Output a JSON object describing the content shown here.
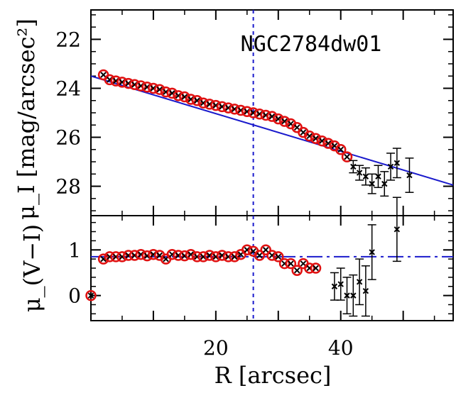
{
  "chart_data": [
    {
      "type": "scatter",
      "title": "NGC2784dw01",
      "ylabel": "μ_I [mag/arcsec²]",
      "xlim": [
        0,
        58
      ],
      "ylim": [
        29.2,
        20.8
      ],
      "y_inverted": true,
      "yticks": [
        "22",
        "24",
        "26",
        "28"
      ],
      "vline_x": 26,
      "fit_line": {
        "x": [
          0,
          58
        ],
        "y": [
          23.5,
          27.95
        ]
      },
      "series": [
        {
          "marker": "cross+circle",
          "points": [
            [
              2,
              23.45
            ],
            [
              3,
              23.65
            ],
            [
              4,
              23.7
            ],
            [
              5,
              23.75
            ],
            [
              6,
              23.8
            ],
            [
              7,
              23.85
            ],
            [
              8,
              23.9
            ],
            [
              9,
              23.95
            ],
            [
              10,
              24.0
            ],
            [
              11,
              24.05
            ],
            [
              12,
              24.15
            ],
            [
              13,
              24.2
            ],
            [
              14,
              24.3
            ],
            [
              15,
              24.35
            ],
            [
              16,
              24.45
            ],
            [
              17,
              24.5
            ],
            [
              18,
              24.6
            ],
            [
              19,
              24.65
            ],
            [
              20,
              24.7
            ],
            [
              21,
              24.75
            ],
            [
              22,
              24.8
            ],
            [
              23,
              24.85
            ],
            [
              24,
              24.9
            ],
            [
              25,
              24.95
            ],
            [
              26,
              25.0
            ],
            [
              27,
              25.05
            ],
            [
              28,
              25.1
            ],
            [
              29,
              25.15
            ],
            [
              30,
              25.25
            ],
            [
              31,
              25.35
            ],
            [
              32,
              25.45
            ],
            [
              33,
              25.6
            ],
            [
              34,
              25.8
            ],
            [
              35,
              25.95
            ],
            [
              36,
              26.05
            ],
            [
              37,
              26.15
            ],
            [
              38,
              26.25
            ],
            [
              39,
              26.35
            ],
            [
              40,
              26.5
            ],
            [
              41,
              26.8
            ]
          ]
        },
        {
          "marker": "cross+errorbar",
          "points": [
            [
              42,
              27.2,
              0.25
            ],
            [
              43,
              27.45,
              0.3
            ],
            [
              44,
              27.6,
              0.35
            ],
            [
              45,
              27.9,
              0.4
            ],
            [
              46,
              27.6,
              0.45
            ],
            [
              47,
              27.9,
              0.5
            ],
            [
              48,
              27.2,
              0.55
            ],
            [
              49,
              27.05,
              0.6
            ],
            [
              51,
              27.55,
              0.7
            ]
          ]
        }
      ]
    },
    {
      "type": "scatter",
      "ylabel": "μ_(V−I)",
      "xlabel": "R [arcsec]",
      "xlim": [
        0,
        58
      ],
      "ylim": [
        -0.55,
        1.75
      ],
      "yticks": [
        "0",
        "1"
      ],
      "xticks": [
        "20",
        "40"
      ],
      "vline_x": 26,
      "fit_line": {
        "x": [
          0,
          58
        ],
        "y": [
          0.85,
          0.85
        ]
      },
      "series": [
        {
          "marker": "cross+circle",
          "points": [
            [
              0,
              0.0
            ],
            [
              2,
              0.8
            ],
            [
              3,
              0.85
            ],
            [
              4,
              0.85
            ],
            [
              5,
              0.85
            ],
            [
              6,
              0.88
            ],
            [
              7,
              0.88
            ],
            [
              8,
              0.9
            ],
            [
              9,
              0.87
            ],
            [
              10,
              0.9
            ],
            [
              11,
              0.88
            ],
            [
              12,
              0.8
            ],
            [
              13,
              0.9
            ],
            [
              14,
              0.88
            ],
            [
              15,
              0.87
            ],
            [
              16,
              0.9
            ],
            [
              17,
              0.85
            ],
            [
              18,
              0.85
            ],
            [
              19,
              0.88
            ],
            [
              20,
              0.85
            ],
            [
              21,
              0.88
            ],
            [
              22,
              0.85
            ],
            [
              23,
              0.85
            ],
            [
              24,
              0.9
            ],
            [
              25,
              1.0
            ],
            [
              26,
              0.97
            ],
            [
              27,
              0.88
            ],
            [
              28,
              1.0
            ],
            [
              29,
              0.88
            ],
            [
              30,
              0.85
            ],
            [
              31,
              0.7
            ],
            [
              32,
              0.7
            ],
            [
              33,
              0.55
            ],
            [
              34,
              0.7
            ],
            [
              35,
              0.6
            ],
            [
              36,
              0.6
            ]
          ]
        },
        {
          "marker": "cross+errorbar",
          "points": [
            [
              39,
              0.2,
              0.3
            ],
            [
              40,
              0.25,
              0.35
            ],
            [
              41,
              0.0,
              0.4
            ],
            [
              42,
              0.0,
              0.45
            ],
            [
              43,
              0.3,
              0.5
            ],
            [
              44,
              0.1,
              0.55
            ],
            [
              45,
              0.95,
              0.6
            ],
            [
              49,
              1.45,
              0.7
            ]
          ]
        }
      ]
    }
  ]
}
